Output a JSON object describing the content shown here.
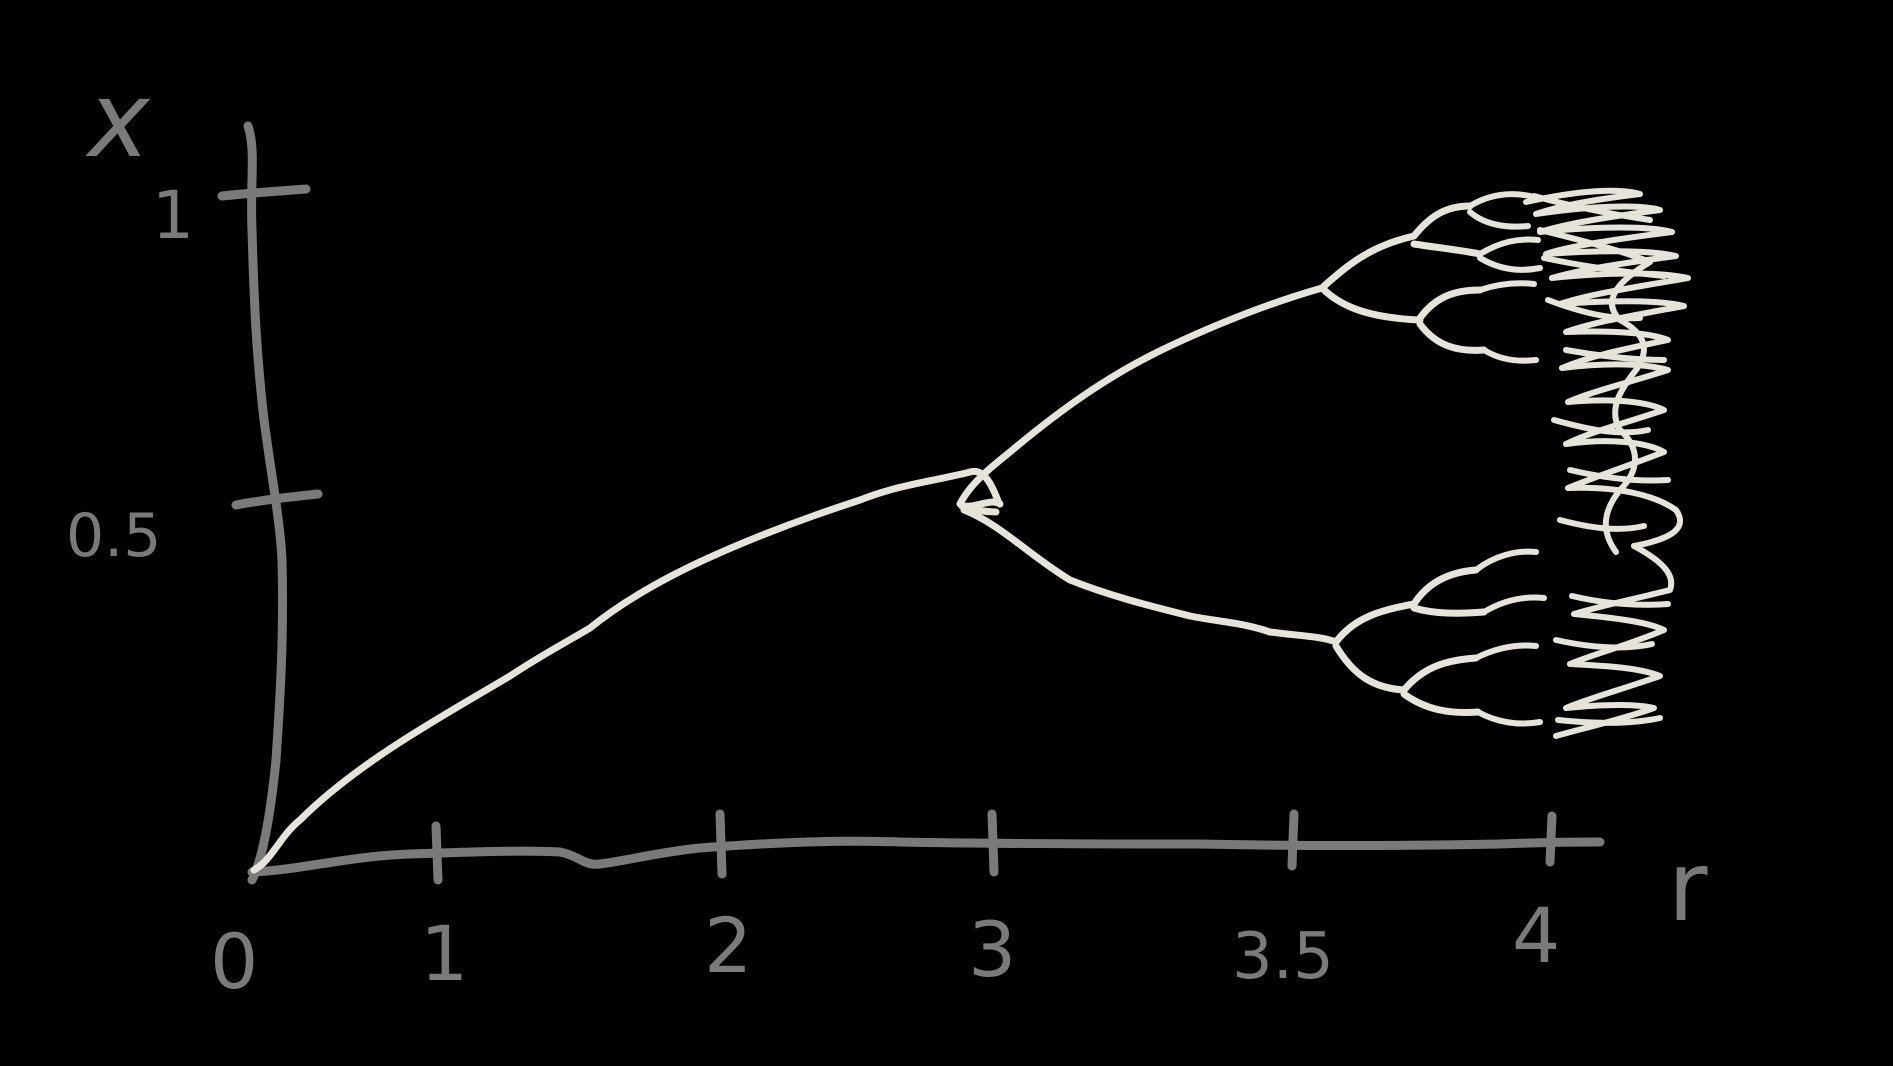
{
  "axes": {
    "x_label": "r",
    "y_label": "x",
    "x_ticks": [
      "0",
      "1",
      "2",
      "3",
      "3.5",
      "4"
    ],
    "y_ticks": [
      "1",
      "0.5"
    ]
  },
  "colors": {
    "background": "#000000",
    "axis": "#7a7a7a",
    "curve": "#e6e3d8"
  }
}
